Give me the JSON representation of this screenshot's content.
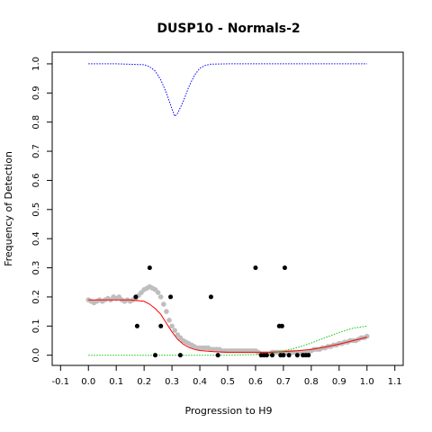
{
  "chart_data": {
    "type": "scatter",
    "title": "DUSP10 - Normals-2",
    "xlabel": "Progression to H9",
    "ylabel": "Frequency of Detection",
    "xlim": [
      -0.13,
      1.13
    ],
    "ylim": [
      -0.035,
      1.04
    ],
    "x_ticks": [
      -0.1,
      0.0,
      0.1,
      0.2,
      0.3,
      0.4,
      0.5,
      0.6,
      0.7,
      0.8,
      0.9,
      1.0,
      1.1
    ],
    "x_tick_labels": [
      "-0.1",
      "0.0",
      "0.1",
      "0.2",
      "0.3",
      "0.4",
      "0.5",
      "0.6",
      "0.7",
      "0.8",
      "0.9",
      "1.0",
      "1.1"
    ],
    "y_ticks": [
      0.0,
      0.1,
      0.2,
      0.3,
      0.4,
      0.5,
      0.6,
      0.7,
      0.8,
      0.9,
      1.0
    ],
    "y_tick_labels": [
      "0.0",
      "0.1",
      "0.2",
      "0.3",
      "0.4",
      "0.5",
      "0.6",
      "0.7",
      "0.8",
      "0.9",
      "1.0"
    ],
    "grid": false,
    "series": [
      {
        "kind": "points",
        "color": "#000000",
        "points": [
          [
            0.17,
            0.2
          ],
          [
            0.175,
            0.1
          ],
          [
            0.22,
            0.3
          ],
          [
            0.24,
            0.0
          ],
          [
            0.26,
            0.1
          ],
          [
            0.295,
            0.2
          ],
          [
            0.33,
            0.0
          ],
          [
            0.44,
            0.2
          ],
          [
            0.465,
            0.0
          ],
          [
            0.6,
            0.3
          ],
          [
            0.62,
            0.0
          ],
          [
            0.63,
            0.0
          ],
          [
            0.64,
            0.0
          ],
          [
            0.66,
            0.0
          ],
          [
            0.685,
            0.1
          ],
          [
            0.69,
            0.0
          ],
          [
            0.695,
            0.1
          ],
          [
            0.7,
            0.0
          ],
          [
            0.705,
            0.3
          ],
          [
            0.72,
            0.0
          ],
          [
            0.75,
            0.0
          ],
          [
            0.77,
            0.0
          ],
          [
            0.78,
            0.0
          ],
          [
            0.79,
            0.0
          ]
        ]
      },
      {
        "kind": "smoothed-points",
        "color": "#bebebe",
        "points": [
          [
            0.0,
            0.19
          ],
          [
            0.01,
            0.185
          ],
          [
            0.02,
            0.18
          ],
          [
            0.03,
            0.185
          ],
          [
            0.04,
            0.19
          ],
          [
            0.05,
            0.185
          ],
          [
            0.06,
            0.19
          ],
          [
            0.07,
            0.195
          ],
          [
            0.08,
            0.19
          ],
          [
            0.09,
            0.2
          ],
          [
            0.1,
            0.195
          ],
          [
            0.11,
            0.2
          ],
          [
            0.12,
            0.19
          ],
          [
            0.13,
            0.185
          ],
          [
            0.14,
            0.19
          ],
          [
            0.15,
            0.185
          ],
          [
            0.16,
            0.19
          ],
          [
            0.17,
            0.195
          ],
          [
            0.18,
            0.205
          ],
          [
            0.19,
            0.215
          ],
          [
            0.2,
            0.225
          ],
          [
            0.21,
            0.23
          ],
          [
            0.22,
            0.235
          ],
          [
            0.23,
            0.23
          ],
          [
            0.24,
            0.225
          ],
          [
            0.25,
            0.215
          ],
          [
            0.26,
            0.2
          ],
          [
            0.27,
            0.175
          ],
          [
            0.28,
            0.15
          ],
          [
            0.29,
            0.12
          ],
          [
            0.3,
            0.1
          ],
          [
            0.31,
            0.085
          ],
          [
            0.32,
            0.07
          ],
          [
            0.33,
            0.06
          ],
          [
            0.34,
            0.05
          ],
          [
            0.35,
            0.045
          ],
          [
            0.36,
            0.04
          ],
          [
            0.37,
            0.035
          ],
          [
            0.38,
            0.03
          ],
          [
            0.39,
            0.025
          ],
          [
            0.4,
            0.025
          ],
          [
            0.41,
            0.025
          ],
          [
            0.42,
            0.025
          ],
          [
            0.43,
            0.025
          ],
          [
            0.44,
            0.02
          ],
          [
            0.45,
            0.02
          ],
          [
            0.46,
            0.02
          ],
          [
            0.47,
            0.02
          ],
          [
            0.48,
            0.015
          ],
          [
            0.49,
            0.015
          ],
          [
            0.5,
            0.015
          ],
          [
            0.51,
            0.015
          ],
          [
            0.52,
            0.015
          ],
          [
            0.53,
            0.015
          ],
          [
            0.54,
            0.015
          ],
          [
            0.55,
            0.015
          ],
          [
            0.56,
            0.015
          ],
          [
            0.57,
            0.015
          ],
          [
            0.58,
            0.015
          ],
          [
            0.59,
            0.015
          ],
          [
            0.6,
            0.015
          ],
          [
            0.61,
            0.01
          ],
          [
            0.62,
            0.005
          ],
          [
            0.63,
            0.005
          ],
          [
            0.64,
            0.005
          ],
          [
            0.65,
            0.005
          ],
          [
            0.66,
            0.01
          ],
          [
            0.67,
            0.01
          ],
          [
            0.68,
            0.01
          ],
          [
            0.69,
            0.01
          ],
          [
            0.7,
            0.01
          ],
          [
            0.71,
            0.01
          ],
          [
            0.72,
            0.01
          ],
          [
            0.73,
            0.01
          ],
          [
            0.74,
            0.01
          ],
          [
            0.75,
            0.01
          ],
          [
            0.76,
            0.01
          ],
          [
            0.77,
            0.01
          ],
          [
            0.78,
            0.01
          ],
          [
            0.79,
            0.01
          ],
          [
            0.8,
            0.015
          ],
          [
            0.81,
            0.02
          ],
          [
            0.82,
            0.02
          ],
          [
            0.83,
            0.02
          ],
          [
            0.84,
            0.025
          ],
          [
            0.85,
            0.025
          ],
          [
            0.86,
            0.03
          ],
          [
            0.87,
            0.03
          ],
          [
            0.88,
            0.035
          ],
          [
            0.89,
            0.035
          ],
          [
            0.9,
            0.04
          ],
          [
            0.91,
            0.04
          ],
          [
            0.92,
            0.045
          ],
          [
            0.93,
            0.045
          ],
          [
            0.94,
            0.05
          ],
          [
            0.95,
            0.05
          ],
          [
            0.96,
            0.05
          ],
          [
            0.97,
            0.055
          ],
          [
            0.98,
            0.06
          ],
          [
            0.99,
            0.06
          ],
          [
            1.0,
            0.065
          ]
        ]
      },
      {
        "kind": "line",
        "color": "#ff0000",
        "style": "solid",
        "x": [
          0.0,
          0.05,
          0.1,
          0.15,
          0.2,
          0.22,
          0.24,
          0.26,
          0.28,
          0.3,
          0.32,
          0.34,
          0.36,
          0.38,
          0.4,
          0.45,
          0.5,
          0.55,
          0.6,
          0.65,
          0.7,
          0.75,
          0.8,
          0.85,
          0.9,
          0.95,
          1.0
        ],
        "y": [
          0.19,
          0.19,
          0.19,
          0.19,
          0.185,
          0.175,
          0.16,
          0.14,
          0.11,
          0.08,
          0.055,
          0.038,
          0.027,
          0.02,
          0.016,
          0.012,
          0.01,
          0.01,
          0.01,
          0.01,
          0.012,
          0.015,
          0.02,
          0.028,
          0.038,
          0.05,
          0.062
        ]
      },
      {
        "kind": "line",
        "color": "#00cc00",
        "style": "dotted",
        "x": [
          0.0,
          0.1,
          0.2,
          0.3,
          0.4,
          0.5,
          0.6,
          0.65,
          0.7,
          0.75,
          0.8,
          0.85,
          0.9,
          0.95,
          1.0
        ],
        "y": [
          0.0,
          0.0,
          0.0,
          0.0,
          0.0,
          0.0,
          0.002,
          0.006,
          0.014,
          0.026,
          0.042,
          0.06,
          0.078,
          0.093,
          0.1
        ]
      },
      {
        "kind": "line",
        "color": "#0000ff",
        "style": "dotted",
        "x": [
          0.0,
          0.1,
          0.2,
          0.22,
          0.24,
          0.26,
          0.28,
          0.3,
          0.31,
          0.32,
          0.34,
          0.36,
          0.38,
          0.4,
          0.42,
          0.44,
          0.5,
          0.6,
          0.8,
          1.0
        ],
        "y": [
          1.0,
          1.0,
          0.997,
          0.99,
          0.975,
          0.945,
          0.9,
          0.845,
          0.82,
          0.83,
          0.87,
          0.92,
          0.96,
          0.985,
          0.995,
          0.999,
          1.0,
          1.0,
          1.0,
          1.0
        ]
      }
    ]
  }
}
